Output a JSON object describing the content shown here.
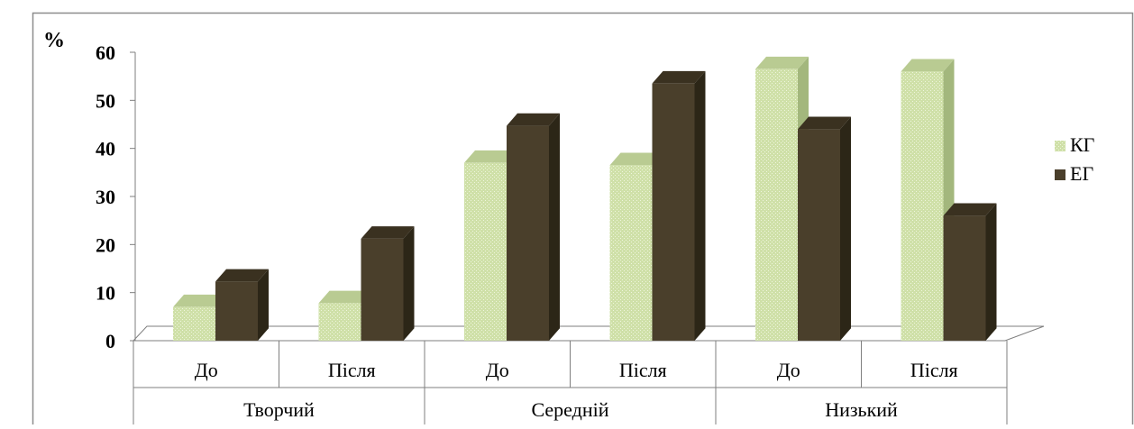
{
  "chart_data": {
    "type": "bar",
    "title": "",
    "xlabel": "",
    "ylabel": "%",
    "ylim": [
      0,
      60
    ],
    "yticks": [
      0,
      10,
      20,
      30,
      40,
      50,
      60
    ],
    "groups": [
      {
        "label": "Творчий",
        "categories": [
          "До",
          "Після"
        ]
      },
      {
        "label": "Середній",
        "categories": [
          "До",
          "Після"
        ]
      },
      {
        "label": "Низький",
        "categories": [
          "До",
          "Після"
        ]
      }
    ],
    "categories": [
      "До",
      "Після",
      "До",
      "Після",
      "До",
      "Після"
    ],
    "series": [
      {
        "name": "КГ",
        "color": "#c4d79b",
        "values": [
          7,
          7.8,
          37,
          36.5,
          56.5,
          56
        ]
      },
      {
        "name": "ЕГ",
        "color": "#4a3f2b",
        "values": [
          12.3,
          21.2,
          44.7,
          53.5,
          44,
          26
        ]
      }
    ],
    "legend": "right",
    "grid": false
  }
}
